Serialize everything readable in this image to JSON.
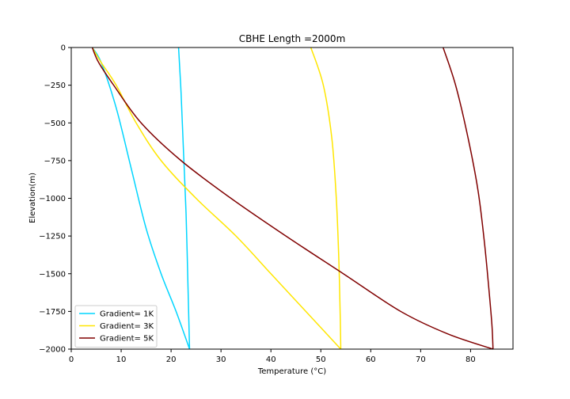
{
  "chart_data": {
    "type": "line",
    "title": "CBHE Length =2000m",
    "xlabel": "Temperature (°C)",
    "ylabel": "Elevation(m)",
    "xlim": [
      0,
      88.5
    ],
    "ylim": [
      -2000,
      0
    ],
    "xticks": [
      0,
      10,
      20,
      30,
      40,
      50,
      60,
      70,
      80
    ],
    "yticks": [
      0,
      -250,
      -500,
      -750,
      -1000,
      -1250,
      -1500,
      -1750,
      -2000
    ],
    "grid": false,
    "legend_position": "lower-left",
    "series": [
      {
        "name": "Gradient= 1K",
        "color": "#00d5ff",
        "curves": [
          {
            "x": [
              4.2,
              6.0,
              9.0,
              12.0,
              15.0,
              18.0,
              21.0,
              23.7
            ],
            "y": [
              0,
              -100,
              -400,
              -800,
              -1200,
              -1500,
              -1750,
              -2000
            ]
          },
          {
            "x": [
              21.5,
              22.0,
              22.5,
              23.0,
              23.4,
              23.7
            ],
            "y": [
              0,
              -300,
              -700,
              -1100,
              -1600,
              -2000
            ]
          }
        ]
      },
      {
        "name": "Gradient= 3K",
        "color": "#ffe600",
        "curves": [
          {
            "x": [
              4.2,
              6.0,
              9.0,
              13.0,
              18.0,
              25.0,
              33.0,
              40.0,
              47.0,
              54.0
            ],
            "y": [
              0,
              -100,
              -250,
              -500,
              -750,
              -1000,
              -1250,
              -1500,
              -1750,
              -2000
            ]
          },
          {
            "x": [
              48.0,
              50.5,
              52.2,
              53.1,
              53.6,
              53.9,
              54.0
            ],
            "y": [
              0,
              -250,
              -600,
              -1000,
              -1400,
              -1800,
              -2000
            ]
          }
        ]
      },
      {
        "name": "Gradient= 5K",
        "color": "#800000",
        "curves": [
          {
            "x": [
              4.2,
              5.5,
              8.5,
              14.0,
              22.0,
              32.0,
              43.0,
              54.5,
              66.0,
              75.5,
              84.5
            ],
            "y": [
              0,
              -100,
              -250,
              -500,
              -750,
              -1000,
              -1250,
              -1500,
              -1750,
              -1900,
              -2000
            ]
          },
          {
            "x": [
              74.5,
              77.0,
              79.5,
              81.5,
              82.8,
              83.8,
              84.3,
              84.5
            ],
            "y": [
              0,
              -250,
              -600,
              -950,
              -1300,
              -1650,
              -1850,
              -2000
            ]
          }
        ]
      }
    ]
  }
}
